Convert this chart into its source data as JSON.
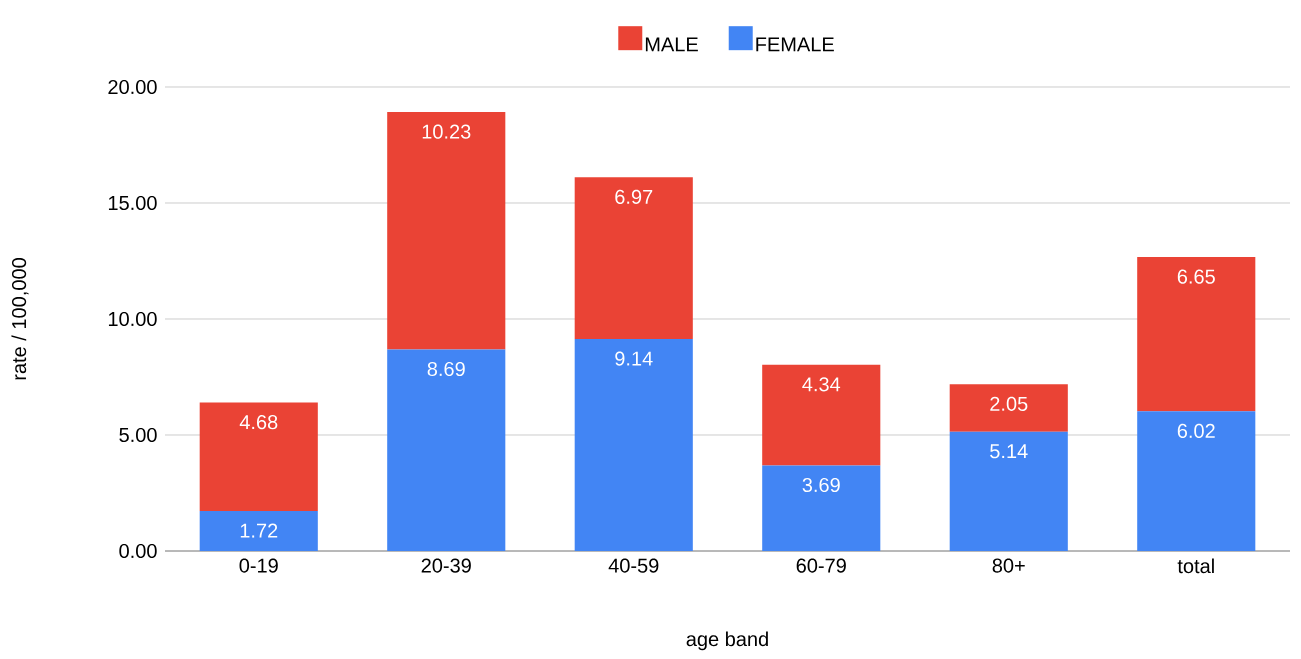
{
  "chart_data": {
    "type": "bar",
    "stacked": true,
    "xlabel": "age band",
    "ylabel": "rate / 100,000",
    "categories": [
      "0-19",
      "20-39",
      "40-59",
      "60-79",
      "80+",
      "total"
    ],
    "series": [
      {
        "name": "FEMALE",
        "color": "#4285f4",
        "values": [
          1.72,
          8.69,
          9.14,
          3.69,
          5.14,
          6.02
        ]
      },
      {
        "name": "MALE",
        "color": "#ea4335",
        "values": [
          4.68,
          10.23,
          6.97,
          4.34,
          2.05,
          6.65
        ]
      }
    ],
    "ylim": [
      0,
      20
    ],
    "yticks": [
      {
        "value": 0,
        "label": "0.00"
      },
      {
        "value": 5,
        "label": "5.00"
      },
      {
        "value": 10,
        "label": "10.00"
      },
      {
        "value": 15,
        "label": "15.00"
      },
      {
        "value": 20,
        "label": "20.00"
      }
    ],
    "grid": "y",
    "legend": "top",
    "data_labels": true
  }
}
